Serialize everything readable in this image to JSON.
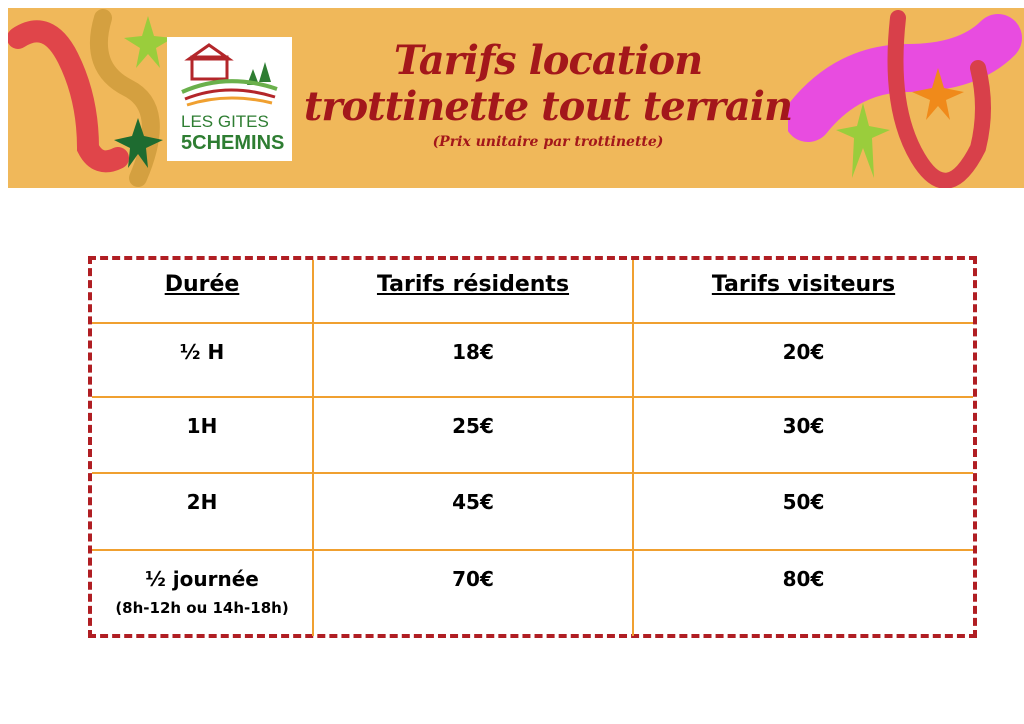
{
  "header": {
    "title_line1": "Tarifs location",
    "title_line2": "trottinette tout terrain",
    "subtitle": "(Prix unitaire par trottinette)",
    "logo": {
      "line1": "LES GITES des",
      "line2": "5 CHEMINS"
    }
  },
  "colors": {
    "banner": "#f0b85a",
    "title": "#a3171b",
    "border": "#b01e23",
    "grid": "#f0a030"
  },
  "table": {
    "headers": [
      "Durée",
      "Tarifs résidents",
      "Tarifs visiteurs"
    ],
    "rows": [
      {
        "duration": "½ H",
        "note": "",
        "residents": "18€",
        "visitors": "20€"
      },
      {
        "duration": "1H",
        "note": "",
        "residents": "25€",
        "visitors": "30€"
      },
      {
        "duration": "2H",
        "note": "",
        "residents": "45€",
        "visitors": "50€"
      },
      {
        "duration": "½ journée",
        "note": "(8h-12h ou 14h-18h)",
        "residents": "70€",
        "visitors": "80€"
      }
    ]
  }
}
